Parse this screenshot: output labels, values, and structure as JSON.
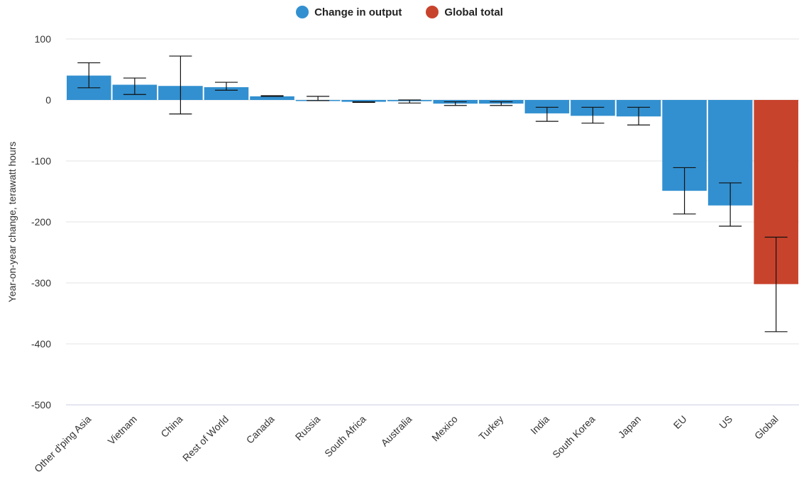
{
  "legend": {
    "items": [
      {
        "label": "Change in output",
        "color": "#3290d0"
      },
      {
        "label": "Global total",
        "color": "#c8432c"
      }
    ]
  },
  "chart_data": {
    "type": "bar",
    "ylabel": "Year-on-year change, terawatt hours",
    "ylim": [
      -500,
      100
    ],
    "yticks": [
      100,
      0,
      -100,
      -200,
      -300,
      -400,
      -500
    ],
    "grid": true,
    "legend_position": "top-center",
    "categories": [
      "Other d'ping Asia",
      "Vietnam",
      "China",
      "Rest of World",
      "Canada",
      "Russia",
      "South Africa",
      "Australia",
      "Mexico",
      "Turkey",
      "India",
      "South Korea",
      "Japan",
      "EU",
      "US",
      "Global"
    ],
    "series": [
      {
        "name": "Change in output",
        "color": "#3290d0",
        "values": [
          40,
          25,
          23,
          21,
          6,
          0,
          -3,
          -2,
          -6,
          -6,
          -22,
          -26,
          -27,
          -149,
          -173,
          null
        ],
        "error_low": [
          20,
          9,
          -23,
          16,
          6,
          -1,
          -4,
          -5,
          -9,
          -9,
          -35,
          -38,
          -41,
          -187,
          -207,
          null
        ],
        "error_high": [
          61,
          36,
          72,
          29,
          7,
          6,
          -3,
          0,
          -3,
          -3,
          -12,
          -12,
          -12,
          -111,
          -136,
          null
        ]
      },
      {
        "name": "Global total",
        "color": "#c8432c",
        "values": [
          null,
          null,
          null,
          null,
          null,
          null,
          null,
          null,
          null,
          null,
          null,
          null,
          null,
          null,
          null,
          -302
        ],
        "error_low": [
          null,
          null,
          null,
          null,
          null,
          null,
          null,
          null,
          null,
          null,
          null,
          null,
          null,
          null,
          null,
          -380
        ],
        "error_high": [
          null,
          null,
          null,
          null,
          null,
          null,
          null,
          null,
          null,
          null,
          null,
          null,
          null,
          null,
          null,
          -225
        ]
      }
    ]
  }
}
